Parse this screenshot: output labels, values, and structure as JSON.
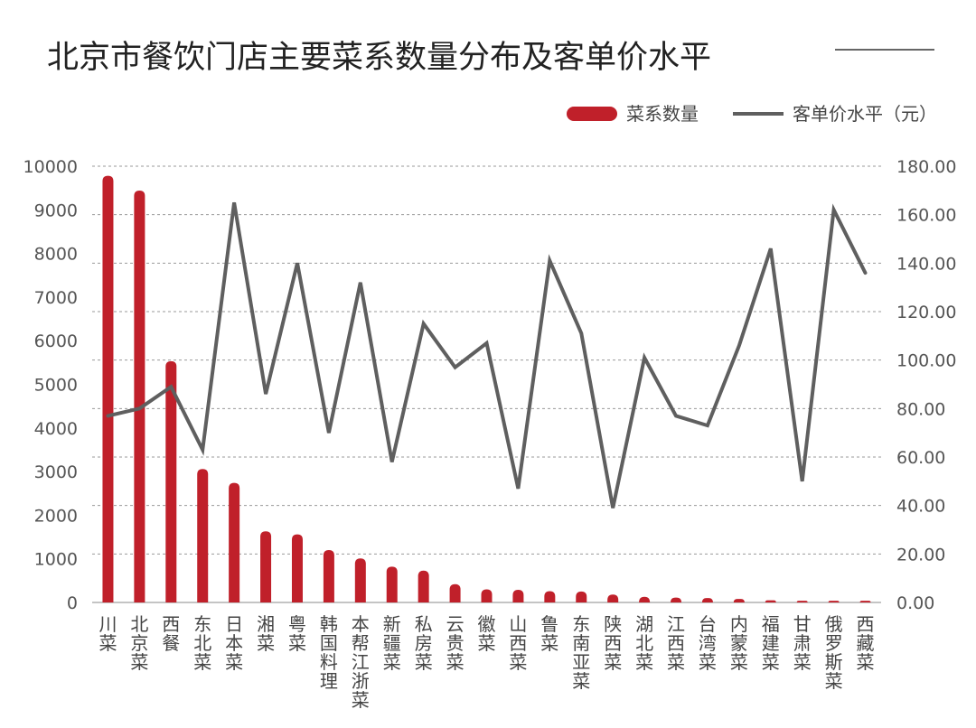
{
  "title": "北京市餐饮门店主要菜系数量分布及客单价水平",
  "chart_data": {
    "type": "bar",
    "title": "北京市餐饮门店主要菜系数量分布及客单价水平",
    "categories": [
      "川菜",
      "北京菜",
      "西餐",
      "东北菜",
      "日本菜",
      "湘菜",
      "粤菜",
      "韩国料理",
      "本帮江浙菜",
      "新疆菜",
      "私房菜",
      "云贵菜",
      "徽菜",
      "山西菜",
      "鲁菜",
      "东南亚菜",
      "陕西菜",
      "湖北菜",
      "江西菜",
      "台湾菜",
      "内蒙菜",
      "福建菜",
      "甘肃菜",
      "俄罗斯菜",
      "西藏菜"
    ],
    "series": [
      {
        "name": "菜系数量",
        "type": "bar",
        "axis": "left",
        "color": "#c0202a",
        "values": [
          9780,
          9440,
          5530,
          3060,
          2740,
          1630,
          1560,
          1200,
          1010,
          820,
          730,
          420,
          300,
          290,
          260,
          250,
          180,
          130,
          110,
          100,
          80,
          50,
          40,
          40,
          40
        ]
      },
      {
        "name": "客单价水平（元）",
        "type": "line",
        "axis": "right",
        "color": "#5f5f5f",
        "values": [
          77,
          80,
          89,
          63,
          165,
          86,
          140,
          70,
          132,
          58,
          115,
          97,
          107,
          47,
          141,
          111,
          39,
          101,
          77,
          73,
          106,
          146,
          50,
          162,
          136
        ]
      }
    ],
    "y_left": {
      "min": 0,
      "max": 10000,
      "ticks": [
        "0",
        "1000",
        "2000",
        "3000",
        "4000",
        "5000",
        "6000",
        "7000",
        "8000",
        "9000",
        "10000"
      ]
    },
    "y_right": {
      "min": 0,
      "max": 180,
      "ticks": [
        "0.00",
        "20.00",
        "40.00",
        "60.00",
        "80.00",
        "100.00",
        "120.00",
        "140.00",
        "160.00",
        "180.00"
      ]
    },
    "grid": true,
    "legend_position": "top-right"
  }
}
